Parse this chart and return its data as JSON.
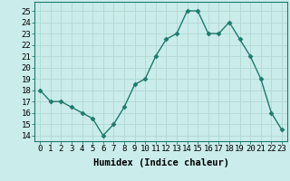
{
  "x": [
    0,
    1,
    2,
    3,
    4,
    5,
    6,
    7,
    8,
    9,
    10,
    11,
    12,
    13,
    14,
    15,
    16,
    17,
    18,
    19,
    20,
    21,
    22,
    23
  ],
  "y": [
    18,
    17,
    17,
    16.5,
    16,
    15.5,
    14,
    15,
    16.5,
    18.5,
    19,
    21,
    22.5,
    23,
    25,
    25,
    23,
    23,
    24,
    22.5,
    21,
    19,
    16,
    14.5
  ],
  "line_color": "#1e7a6e",
  "marker": "D",
  "marker_size": 2.5,
  "bg_color": "#caecea",
  "grid_color": "#b0d8d4",
  "xlabel": "Humidex (Indice chaleur)",
  "ylim": [
    13.5,
    25.8
  ],
  "yticks": [
    14,
    15,
    16,
    17,
    18,
    19,
    20,
    21,
    22,
    23,
    24,
    25
  ],
  "xticks": [
    0,
    1,
    2,
    3,
    4,
    5,
    6,
    7,
    8,
    9,
    10,
    11,
    12,
    13,
    14,
    15,
    16,
    17,
    18,
    19,
    20,
    21,
    22,
    23
  ],
  "xlim": [
    -0.5,
    23.5
  ],
  "xlabel_fontsize": 7.5,
  "tick_fontsize": 6.5,
  "linewidth": 1.0
}
